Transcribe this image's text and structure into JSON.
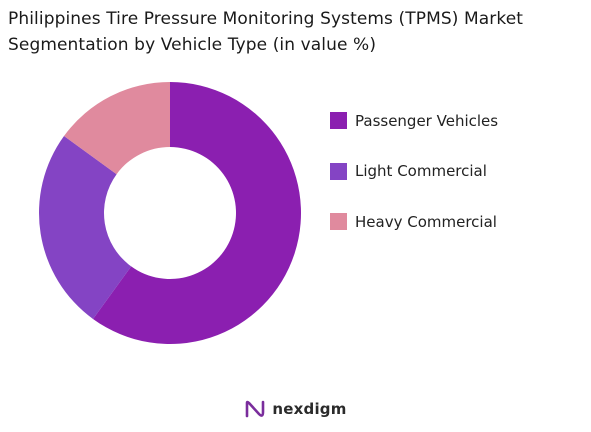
{
  "chart_data": {
    "type": "pie",
    "title": "Philippines Tire Pressure Monitoring Systems (TPMS) Market Segmentation by Vehicle Type (in value %)",
    "categories": [
      "Passenger Vehicles",
      "Light Commercial",
      "Heavy Commercial"
    ],
    "values": [
      60,
      25,
      15
    ],
    "colors": [
      "#8B1FB0",
      "#8444C4",
      "#E08A9E"
    ],
    "donut": true,
    "start_angle_deg": 0,
    "direction": "clockwise",
    "legend": "right",
    "grid": false
  },
  "brand": {
    "name": "nexdigm",
    "icon": "nexdigm-logo-icon",
    "color": "#7A2D9C"
  }
}
